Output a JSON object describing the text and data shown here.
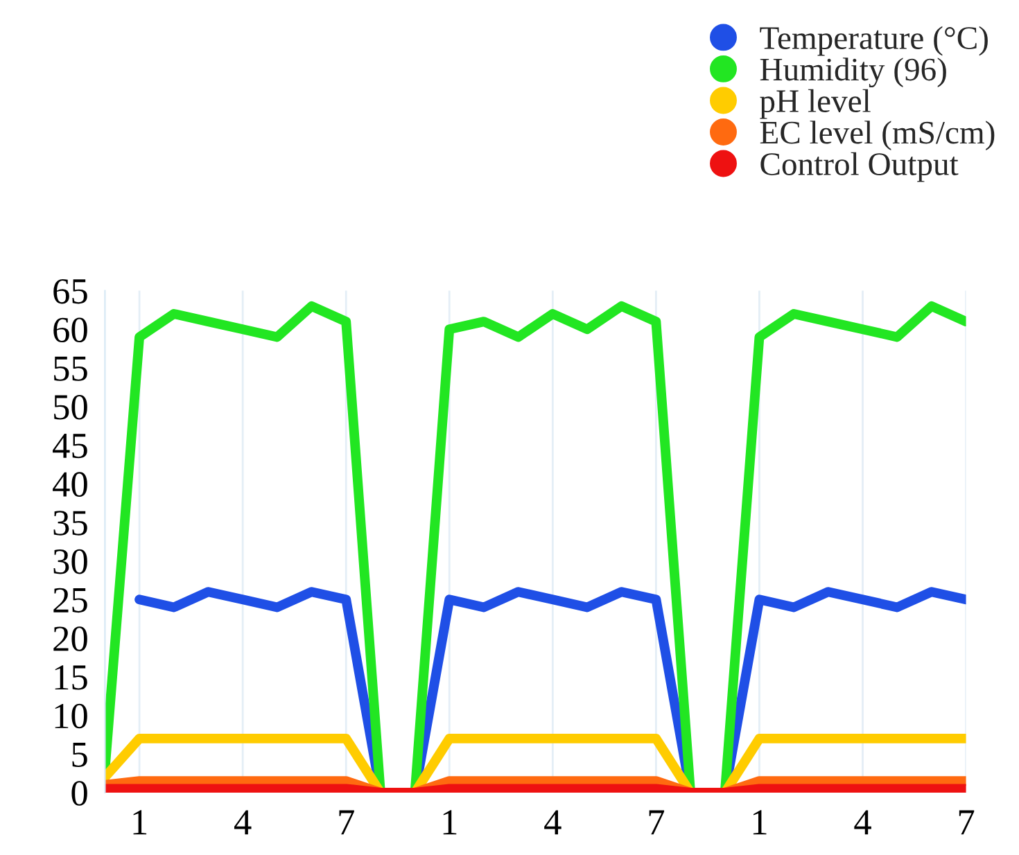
{
  "chart_data": {
    "type": "line",
    "categories": [
      null,
      "1",
      null,
      null,
      "4",
      null,
      null,
      "7",
      null,
      null,
      "1",
      null,
      null,
      "4",
      null,
      null,
      "7",
      null,
      null,
      "1",
      null,
      null,
      "4",
      null,
      null,
      "7"
    ],
    "series": [
      {
        "name": "Temperature (°C)",
        "color": "#1f4fe6",
        "values": [
          null,
          25,
          24,
          26,
          25,
          24,
          26,
          25,
          0,
          0,
          25,
          24,
          26,
          25,
          24,
          26,
          25,
          0,
          0,
          25,
          24,
          26,
          25,
          24,
          26,
          25
        ]
      },
      {
        "name": "Humidity (96)",
        "color": "#22e622",
        "values": [
          3,
          59,
          62,
          61,
          60,
          59,
          63,
          61,
          0,
          0,
          60,
          61,
          59,
          62,
          60,
          63,
          61,
          0,
          0,
          59,
          62,
          61,
          60,
          59,
          63,
          61
        ]
      },
      {
        "name": "pH level",
        "color": "#ffcc00",
        "values": [
          2,
          7,
          7,
          7,
          7,
          7,
          7,
          7,
          0,
          0,
          7,
          7,
          7,
          7,
          7,
          7,
          7,
          0,
          0,
          7,
          7,
          7,
          7,
          7,
          7,
          7
        ]
      },
      {
        "name": "EC level (mS/cm)",
        "color": "#ff6a10",
        "values": [
          1,
          1.5,
          1.5,
          1.5,
          1.5,
          1.5,
          1.5,
          1.5,
          0,
          0,
          1.5,
          1.5,
          1.5,
          1.5,
          1.5,
          1.5,
          1.5,
          0,
          0,
          1.5,
          1.5,
          1.5,
          1.5,
          1.5,
          1.5,
          1.5
        ]
      },
      {
        "name": "Control Output",
        "color": "#ee1111",
        "values": [
          0.5,
          0.5,
          0.5,
          0.5,
          0.5,
          0.5,
          0.5,
          0.5,
          0,
          0,
          0.5,
          0.5,
          0.5,
          0.5,
          0.5,
          0.5,
          0.5,
          0,
          0,
          0.5,
          0.5,
          0.5,
          0.5,
          0.5,
          0.5,
          0.5
        ]
      }
    ],
    "ylim": [
      0,
      65
    ],
    "yticks": [
      0,
      5,
      10,
      15,
      20,
      25,
      30,
      35,
      40,
      45,
      50,
      55,
      60,
      65
    ],
    "grid": "x",
    "legend": "top right",
    "marker": "none",
    "line_style": "solid"
  }
}
